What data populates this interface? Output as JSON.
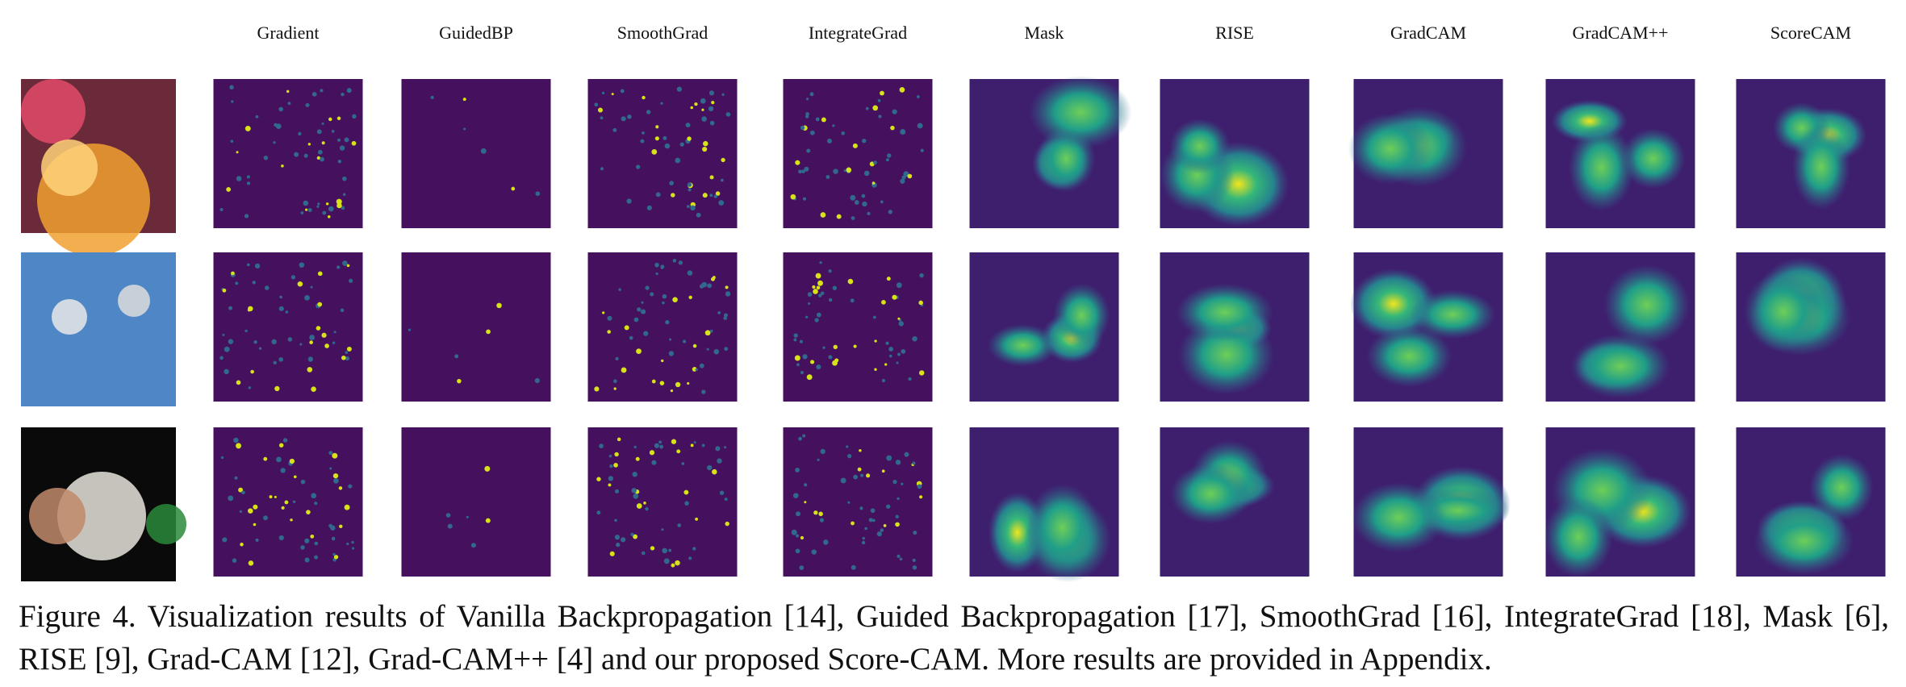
{
  "figure": {
    "column_headers": [
      "Gradient",
      "GuidedBP",
      "SmoothGrad",
      "IntegrateGrad",
      "Mask",
      "RISE",
      "GradCAM",
      "GradCAM++",
      "ScoreCAM"
    ],
    "caption": "Figure 4. Visualization results of Vanilla Backpropagation [14], Guided Backpropagation [17], SmoothGrad [16], IntegrateGrad [18], Mask [6], RISE [9], Grad-CAM [12], Grad-CAM++ [4] and our proposed Score-CAM. More results are provided in Appendix."
  }
}
